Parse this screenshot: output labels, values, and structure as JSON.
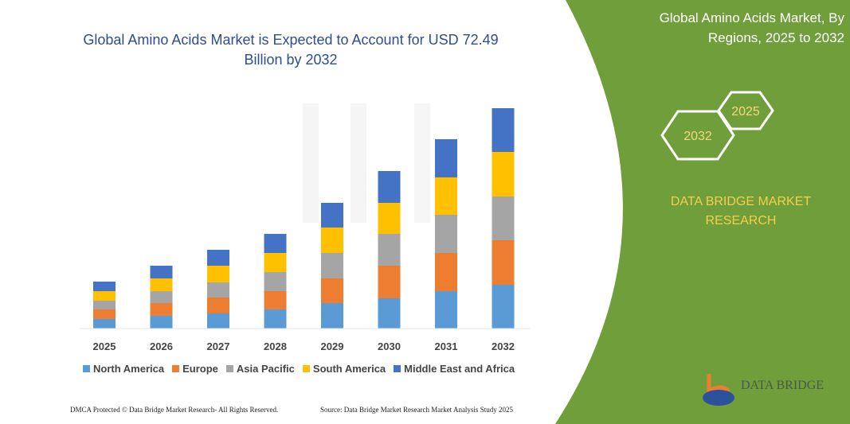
{
  "header": {
    "title": "Global Amino Acids Market is Expected to Account for USD 72.49 Billion by 2032"
  },
  "side_panel": {
    "title": "Global Amino Acids Market, By Regions, 2025 to 2032",
    "hex_start": "2025",
    "hex_end": "2032",
    "brand": "DATA BRIDGE MARKET RESEARCH",
    "panel_color": "#6f9e3a"
  },
  "logo": {
    "text": "DATA BRIDGE"
  },
  "footer": {
    "left": "DMCA Protected © Data Bridge Market Research- All Rights Reserved.",
    "right": "Source: Data Bridge Market Research Market Analysis Study 2025"
  },
  "chart_data": {
    "type": "bar",
    "stacked": true,
    "grid": false,
    "legend_position": "bottom",
    "note_values": "relative segment sizes estimated from bar heights (no value axis shown)",
    "categories": [
      "2025",
      "2026",
      "2027",
      "2028",
      "2029",
      "2030",
      "2031",
      "2032"
    ],
    "series": [
      {
        "name": "North America",
        "color": "#5b9bd5",
        "values": [
          12,
          16,
          19,
          24,
          32,
          38,
          47,
          55
        ]
      },
      {
        "name": "Europe",
        "color": "#ed7d31",
        "values": [
          12,
          16,
          20,
          23,
          31,
          41,
          48,
          56
        ]
      },
      {
        "name": "Asia Pacific",
        "color": "#a5a5a5",
        "values": [
          11,
          15,
          19,
          24,
          32,
          40,
          48,
          55
        ]
      },
      {
        "name": "South America",
        "color": "#ffc000",
        "values": [
          12,
          16,
          21,
          24,
          32,
          39,
          47,
          56
        ]
      },
      {
        "name": "Middle East and Africa",
        "color": "#4472c4",
        "values": [
          12,
          16,
          20,
          24,
          31,
          40,
          48,
          55
        ]
      }
    ]
  }
}
